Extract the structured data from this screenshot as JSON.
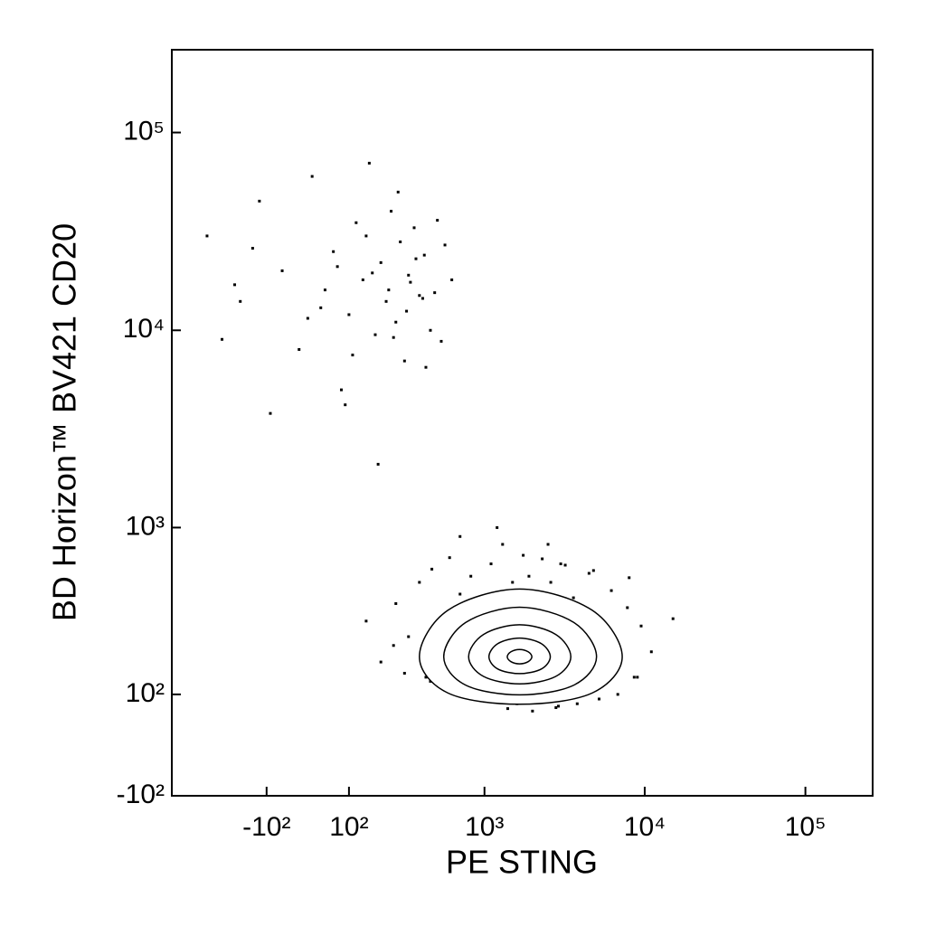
{
  "chart_data": {
    "type": "contour",
    "x_label": "PE STING",
    "y_label": "BD Horizon™ BV421 CD20",
    "xscale": "biexponential",
    "yscale": "biexponential",
    "xlim": [
      -550,
      262144
    ],
    "ylim": [
      -100,
      262144
    ],
    "xticks": [
      {
        "value": -100,
        "label": "-10²"
      },
      {
        "value": 100,
        "label": "10²"
      },
      {
        "value": 1000,
        "label": "10³"
      },
      {
        "value": 10000,
        "label": "10⁴"
      },
      {
        "value": 100000,
        "label": "10⁵"
      }
    ],
    "yticks": [
      {
        "value": -100,
        "label": "-10²"
      },
      {
        "value": 100,
        "label": "10²"
      },
      {
        "value": 1000,
        "label": "10³"
      },
      {
        "value": 10000,
        "label": "10⁴"
      },
      {
        "value": 100000,
        "label": "10⁵"
      }
    ],
    "color": "#000000",
    "series": [
      {
        "x": [
          -320,
          -250,
          -180,
          -120,
          -60,
          -20,
          10,
          40,
          60,
          80,
          100,
          120,
          140,
          160,
          180,
          200,
          220,
          240,
          260,
          280,
          300,
          320,
          350,
          380,
          410,
          450,
          500,
          560,
          620,
          -200,
          -90,
          30,
          70,
          110,
          150,
          190,
          230,
          270,
          310,
          360,
          420,
          480,
          -140,
          0,
          90,
          170,
          250,
          330,
          400,
          530
        ],
        "y": [
          30000,
          9000,
          14000,
          45000,
          20000,
          8000,
          60000,
          16000,
          25000,
          5000,
          12000,
          35000,
          18000,
          70000,
          9500,
          22000,
          14000,
          40000,
          11000,
          28000,
          7000,
          19000,
          33000,
          15000,
          24000,
          10000,
          36000,
          27000,
          18000,
          17000,
          3800,
          13000,
          21000,
          7500,
          30000,
          2100,
          16000,
          50000,
          12500,
          23000,
          6500,
          15500,
          26000,
          11500,
          4200,
          19500,
          9200,
          17500,
          14500,
          8800
        ]
      },
      {
        "x": [
          150,
          200,
          260,
          320,
          380,
          420,
          460,
          500,
          540,
          600,
          650,
          700,
          760,
          820,
          900,
          980,
          1100,
          1200,
          1300,
          1450,
          1600,
          1750,
          1900,
          2100,
          2300,
          2600,
          2900,
          3200,
          3600,
          4000,
          4500,
          5000,
          5600,
          6200,
          7000,
          7800,
          8600,
          9500,
          11000,
          15000,
          300,
          450,
          600,
          800,
          1000,
          1400,
          2000,
          2800,
          3800,
          5200,
          6800,
          9000,
          250,
          700,
          1200,
          2500,
          4800,
          8000,
          3000,
          1500
        ],
        "y": [
          320,
          180,
          400,
          260,
          520,
          140,
          610,
          230,
          340,
          700,
          120,
          450,
          290,
          560,
          90,
          380,
          650,
          110,
          820,
          470,
          80,
          720,
          560,
          95,
          690,
          520,
          75,
          640,
          430,
          120,
          580,
          300,
          160,
          470,
          220,
          380,
          140,
          300,
          210,
          330,
          150,
          130,
          110,
          95,
          85,
          70,
          65,
          72,
          80,
          90,
          100,
          140,
          230,
          900,
          1000,
          820,
          600,
          550,
          650,
          520
        ]
      }
    ],
    "contours": [
      {
        "x": [
          7244,
          4705,
          1660,
          586,
          380,
          586,
          1660,
          4705
        ],
        "y": [
          195,
          368,
          479,
          368,
          195,
          103,
          79,
          103
        ]
      },
      {
        "x": [
          5012,
          3622,
          1660,
          760,
          550,
          760,
          1660,
          3622
        ],
        "y": [
          195,
          314,
          382,
          314,
          195,
          121,
          99,
          121
        ]
      },
      {
        "x": [
          3467,
          2793,
          1660,
          986,
          794,
          986,
          1660,
          2793
        ],
        "y": [
          195,
          268,
          305,
          268,
          195,
          142,
          124,
          142
        ]
      },
      {
        "x": [
          2582,
          2270,
          1660,
          1213,
          1067,
          1213,
          1660,
          2270
        ],
        "y": [
          195,
          236,
          255,
          236,
          195,
          161,
          149,
          161
        ]
      },
      {
        "x": [
          1982,
          1879,
          1660,
          1466,
          1390,
          1466,
          1660,
          1879
        ],
        "y": [
          195,
          210,
          217,
          210,
          195,
          181,
          175,
          181
        ]
      }
    ]
  }
}
